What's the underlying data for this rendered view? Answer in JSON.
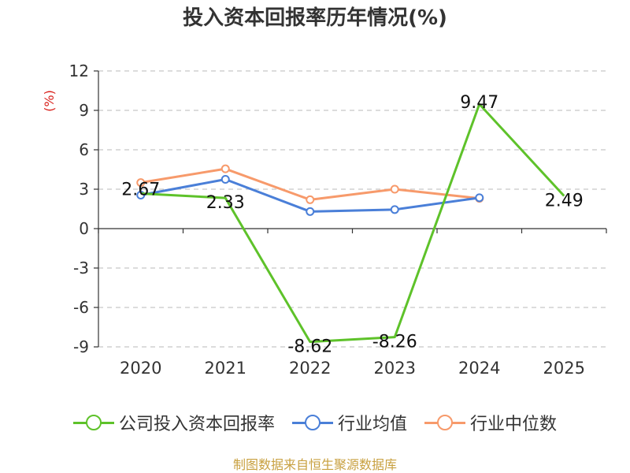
{
  "chart_data": {
    "type": "line",
    "title": "投入资本回报率历年情况(%)",
    "ylabel": "(%)",
    "categories": [
      "2020",
      "2021",
      "2022",
      "2023",
      "2024",
      "2025"
    ],
    "ylim": [
      -9,
      12
    ],
    "yticks": [
      12,
      9,
      6,
      3,
      0,
      -3,
      -6,
      -9
    ],
    "grid": true,
    "legend_position": "bottom",
    "series": [
      {
        "name": "公司投入资本回报率",
        "color": "#5ec22a",
        "values": [
          2.67,
          2.33,
          -8.62,
          -8.26,
          9.47,
          2.49
        ],
        "data_labels": [
          "2.67",
          "2.33",
          "-8.62",
          "-8.26",
          "9.47",
          "2.49"
        ]
      },
      {
        "name": "行业均值",
        "color": "#4a7fd8",
        "values": [
          2.55,
          3.75,
          1.3,
          1.45,
          2.35,
          null
        ]
      },
      {
        "name": "行业中位数",
        "color": "#f79a6b",
        "values": [
          3.5,
          4.55,
          2.2,
          3.0,
          2.3,
          null
        ]
      }
    ]
  },
  "footer": "制图数据来自恒生聚源数据库"
}
